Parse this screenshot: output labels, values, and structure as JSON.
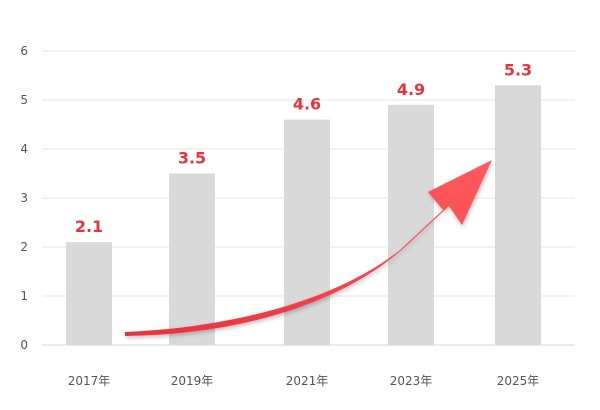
{
  "chart_data": {
    "type": "bar",
    "categories": [
      "2017年",
      "2019年",
      "2021年",
      "2023年",
      "2025年"
    ],
    "values": [
      2.1,
      3.5,
      4.6,
      4.9,
      5.3
    ],
    "data_labels": [
      "2.1",
      "3.5",
      "4.6",
      "4.9",
      "5.3"
    ],
    "ylim": [
      0,
      6
    ],
    "yticks": [
      "0",
      "1",
      "2",
      "3",
      "4",
      "5",
      "6"
    ],
    "grid": true,
    "title": "",
    "xlabel": "",
    "ylabel": "",
    "annotation": "red-upward-trend-arrow",
    "colors": {
      "bar": "#d9d9d9",
      "label": "#e8323c",
      "arrow": "#f03c44",
      "grid": "#e6e6e6"
    }
  }
}
